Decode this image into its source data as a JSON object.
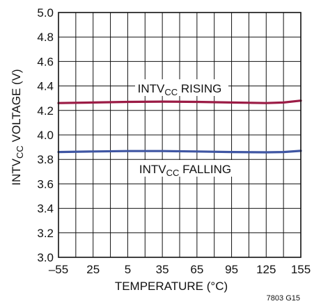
{
  "chart_data": {
    "type": "line",
    "xlabel": "TEMPERATURE (°C)",
    "ylabel": "INTVCC VOLTAGE (V)",
    "x_ticks": [
      "–55",
      "25",
      "5",
      "35",
      "65",
      "95",
      "125",
      "155"
    ],
    "y_ticks": [
      "3.0",
      "3.2",
      "3.4",
      "3.6",
      "3.8",
      "4.0",
      "4.2",
      "4.4",
      "4.6",
      "4.8",
      "5.0"
    ],
    "ylim": [
      3.0,
      5.0
    ],
    "grid": true,
    "series": [
      {
        "name": "INTVCC RISING",
        "color": "#9b1b45",
        "points": [
          [
            0,
            4.26
          ],
          [
            1,
            4.265
          ],
          [
            2,
            4.27
          ],
          [
            3,
            4.272
          ],
          [
            4,
            4.27
          ],
          [
            5,
            4.265
          ],
          [
            6,
            4.26
          ],
          [
            6.5,
            4.265
          ],
          [
            7,
            4.28
          ]
        ]
      },
      {
        "name": "INTVCC FALLING",
        "color": "#3f56a3",
        "points": [
          [
            0,
            3.86
          ],
          [
            1,
            3.865
          ],
          [
            2,
            3.868
          ],
          [
            3,
            3.868
          ],
          [
            4,
            3.865
          ],
          [
            5,
            3.86
          ],
          [
            6,
            3.858
          ],
          [
            6.5,
            3.86
          ],
          [
            7,
            3.87
          ]
        ]
      }
    ],
    "figure_id": "7803 G15"
  }
}
